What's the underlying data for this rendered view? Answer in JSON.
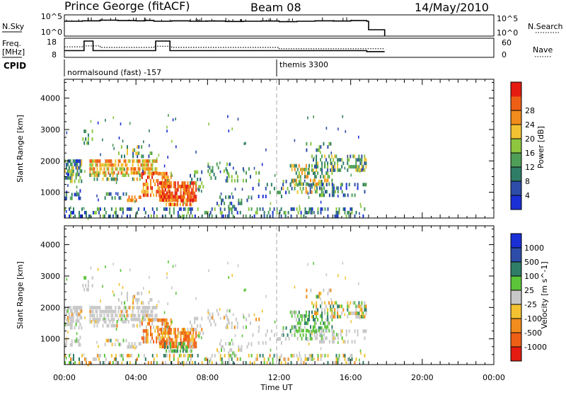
{
  "header": {
    "radar": "Prince George (fitACF)",
    "beam": "Beam 08",
    "date": "14/May/2010"
  },
  "colors": {
    "power": [
      "#1a2fd6",
      "#2e4da8",
      "#2f7d67",
      "#4f9e58",
      "#8dc63f",
      "#f2c232",
      "#f28c1c",
      "#ee5f16",
      "#e51b12"
    ],
    "velocity": [
      "#e51b12",
      "#ee5f16",
      "#f28c1c",
      "#f2c232",
      "#c8c8c8",
      "#5cc43a",
      "#2f7d67",
      "#2e4da8",
      "#1a2fd6"
    ],
    "ground_scatter": "#c8c8c8"
  },
  "chart_data": [
    {
      "type": "line",
      "name": "noise-panel",
      "left_label": "N.Sky",
      "right_label": "N.Search",
      "left_ticks": [
        "10^5",
        "10^0"
      ],
      "right_ticks": [
        "10^5",
        "10^0"
      ],
      "series": [
        {
          "name": "N.Sky",
          "style": "solid",
          "x": [
            0.0,
            1.0,
            2.0,
            3.0,
            4.0,
            4.5,
            5.0,
            6.0,
            7.0,
            8.0,
            9.0,
            10.0,
            11.0,
            12.0,
            13.0,
            14.0,
            15.0,
            16.0,
            16.9,
            17.0,
            17.8,
            17.9
          ],
          "y_frac": [
            0.7,
            0.72,
            0.75,
            0.73,
            0.72,
            0.74,
            0.7,
            0.72,
            0.7,
            0.71,
            0.69,
            0.7,
            0.71,
            0.68,
            0.7,
            0.72,
            0.71,
            0.73,
            0.7,
            0.3,
            0.3,
            0.0
          ]
        }
      ]
    },
    {
      "type": "line",
      "name": "frequency-panel",
      "left_label": "Freq.",
      "left_unit": "[MHz]",
      "right_label": "Nave",
      "left_ticks": [
        "18",
        "8"
      ],
      "right_ticks": [
        "60",
        "0"
      ],
      "cpid_label": "CPID",
      "series": [
        {
          "name": "Freq",
          "style": "solid",
          "x": [
            0.0,
            1.0,
            1.1,
            1.5,
            1.6,
            5.0,
            5.1,
            5.8,
            5.9,
            16.9,
            17.0,
            17.9
          ],
          "y_frac": [
            0.35,
            0.35,
            0.85,
            0.85,
            0.35,
            0.35,
            0.85,
            0.85,
            0.35,
            0.3,
            0.3,
            0.3
          ]
        },
        {
          "name": "Nave",
          "style": "dotted",
          "x": [
            0.0,
            1.0,
            2.0,
            5.0,
            6.0,
            12.0,
            17.0,
            17.9
          ],
          "y_frac": [
            0.55,
            0.6,
            0.52,
            0.58,
            0.52,
            0.45,
            0.45,
            0.45
          ]
        }
      ]
    },
    {
      "type": "heatmap",
      "name": "power-panel",
      "ylabel": "Slant Range [km]",
      "yticks": [
        1000,
        2000,
        3000,
        4000
      ],
      "ylim": [
        180,
        4600
      ],
      "colorbar_label": "Power [dB]",
      "colorbar_ticks": [
        4,
        8,
        12,
        16,
        20,
        24,
        28
      ],
      "cpid": [
        {
          "label": "normalsound (fast) -157",
          "start": 0.0
        },
        {
          "label": "themis 3300",
          "start": 12.0
        }
      ]
    },
    {
      "type": "heatmap",
      "name": "velocity-panel",
      "ylabel": "Slant Range [km]",
      "yticks": [
        1000,
        2000,
        3000,
        4000
      ],
      "ylim": [
        180,
        4600
      ],
      "colorbar_label": "Velocity [m s^-1]",
      "colorbar_ticks": [
        "1000",
        "500",
        "100",
        "25",
        "-25",
        "-100",
        "-500",
        "-1000"
      ],
      "xlabel": "Time UT",
      "xticks": [
        "00:00",
        "04:00",
        "08:00",
        "12:00",
        "16:00",
        "20:00",
        "00:00"
      ],
      "xlim": [
        0,
        24
      ]
    }
  ]
}
